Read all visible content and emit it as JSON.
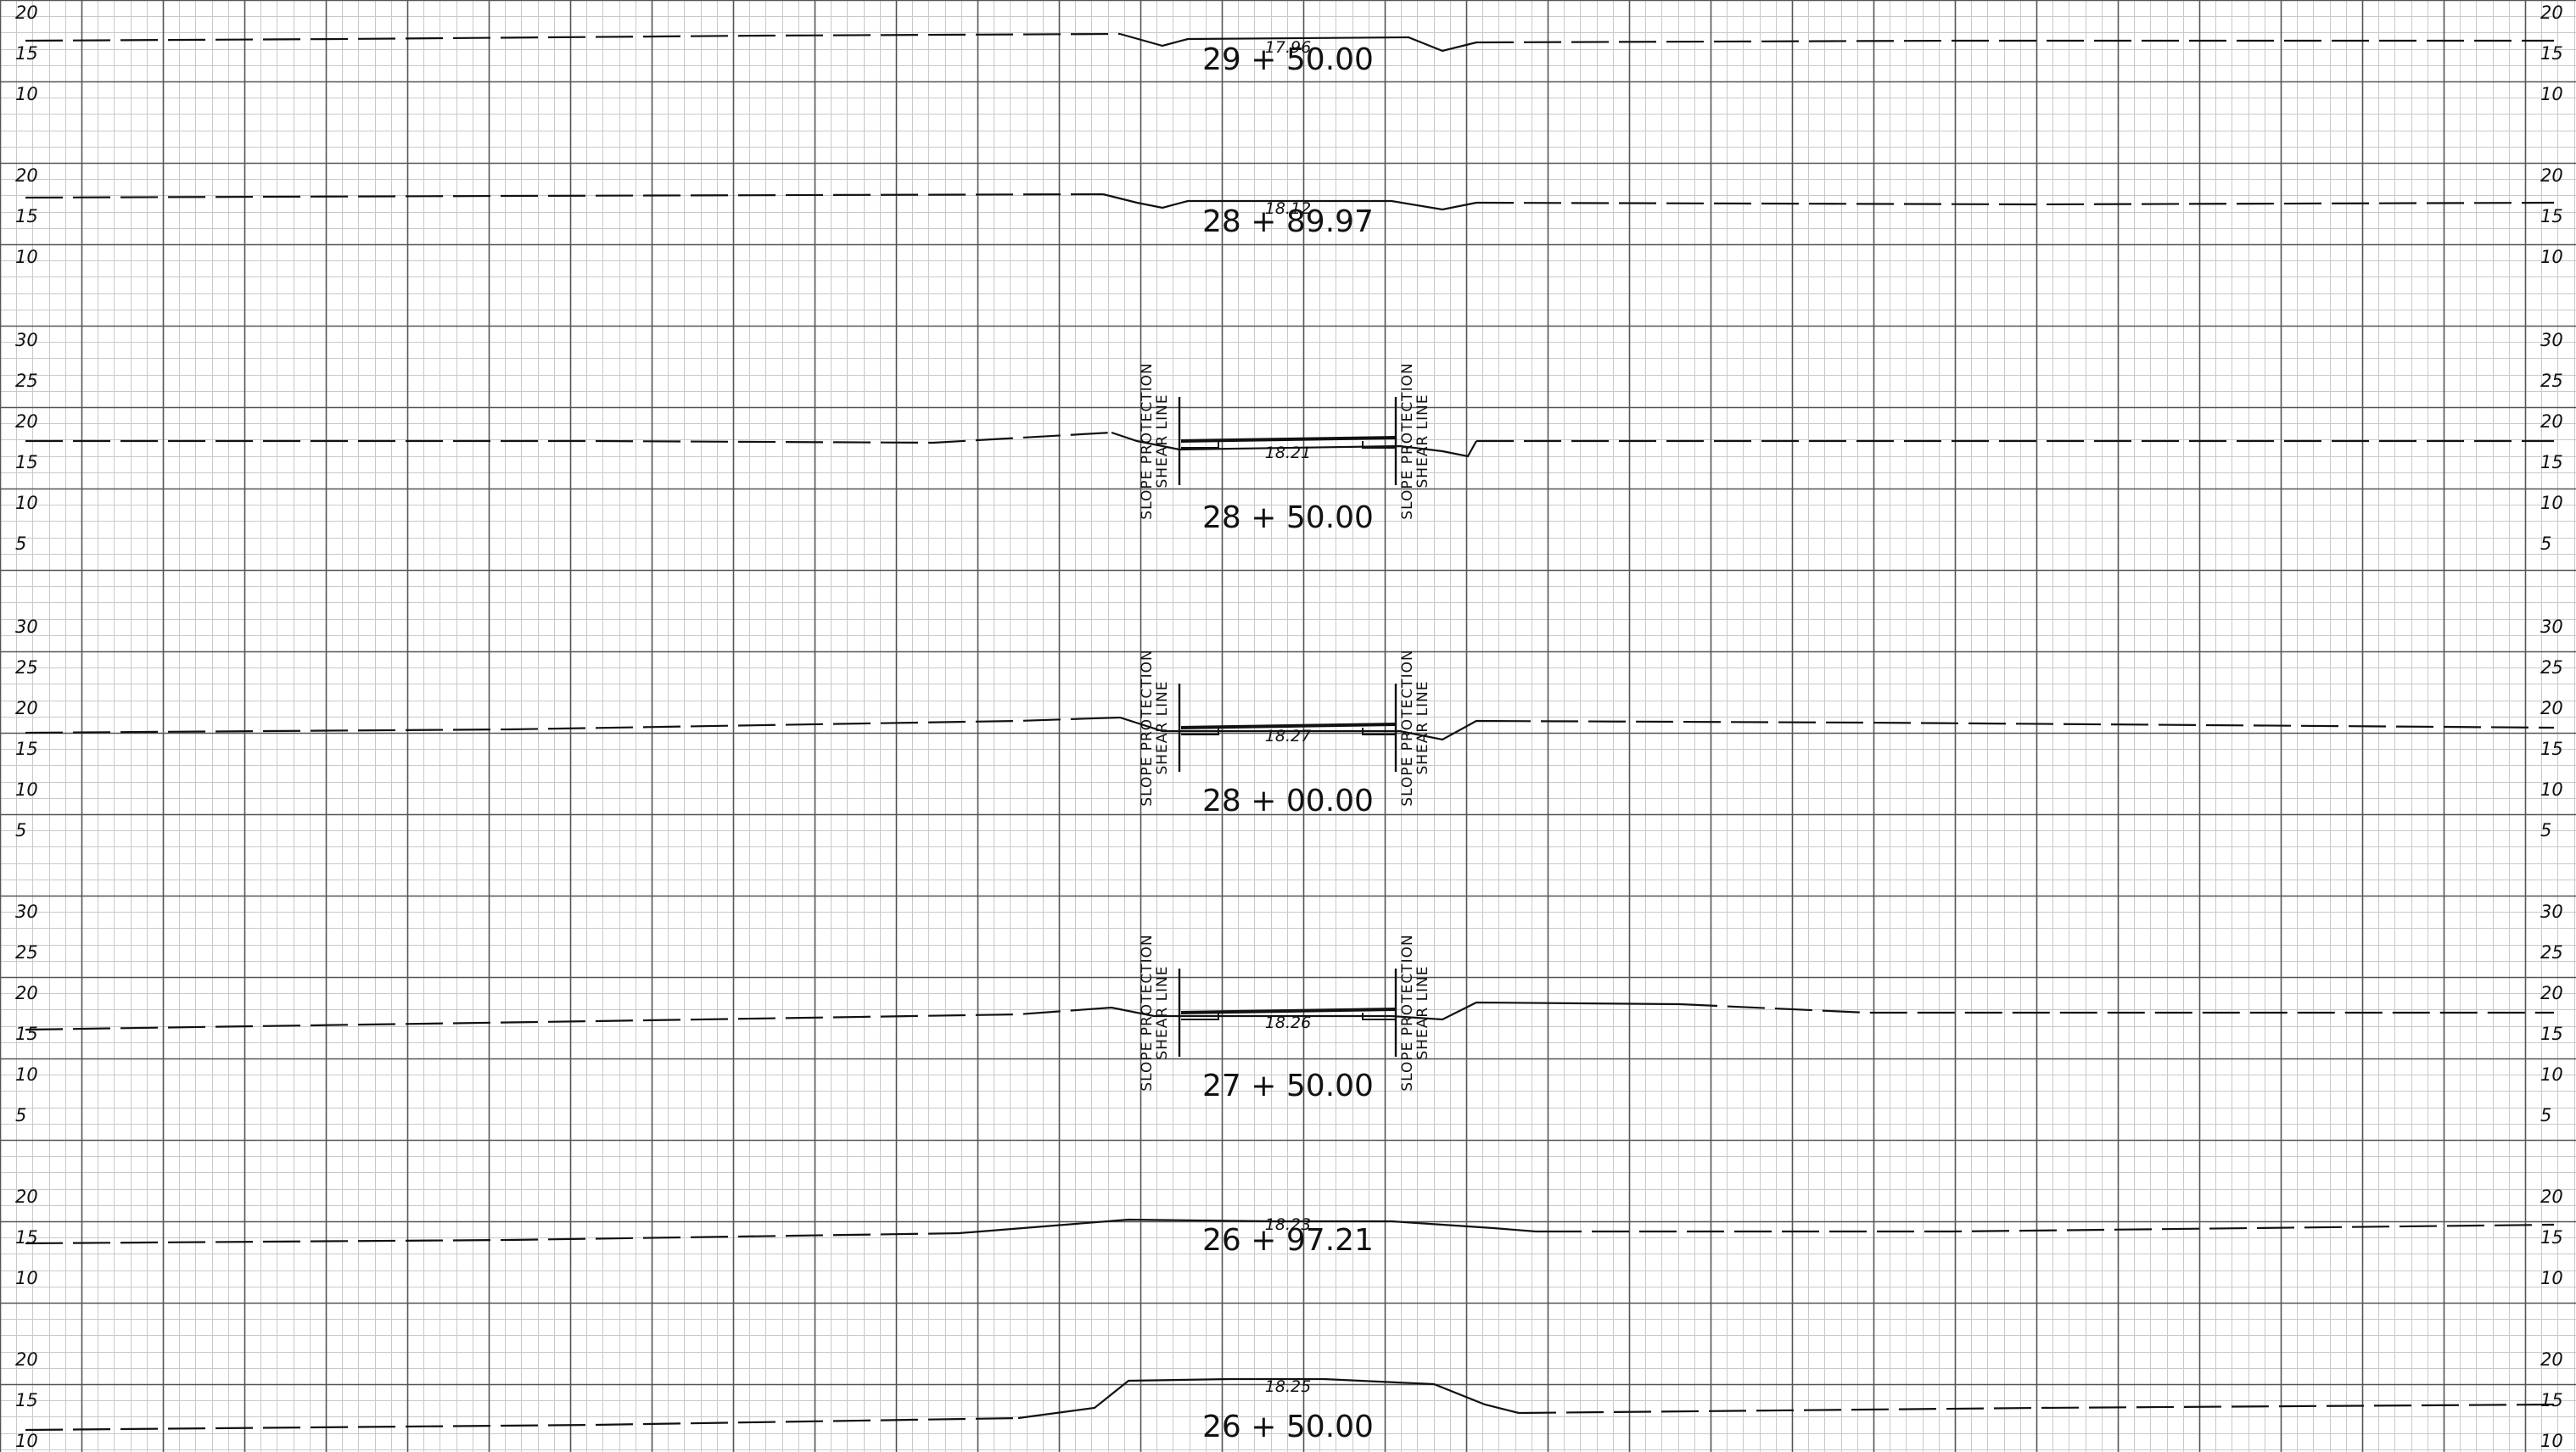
{
  "sheet": {
    "title": "",
    "grid": "on",
    "line_color": "#111111",
    "grid_minor_color": "#c9c9c9",
    "grid_major_color": "#555555"
  },
  "sections": [
    {
      "id": "s2950",
      "station": "29 + 50.00",
      "grade": "17.96",
      "labels_left": [
        "20",
        "15",
        "10"
      ],
      "labels_right": [
        "20",
        "15",
        "10"
      ],
      "slope_protection": false
    },
    {
      "id": "s2897",
      "station": "28 + 89.97",
      "grade": "18.12",
      "labels_left": [
        "20",
        "15",
        "10"
      ],
      "labels_right": [
        "20",
        "15",
        "10"
      ],
      "slope_protection": false
    },
    {
      "id": "s2850",
      "station": "28 + 50.00",
      "grade": "18.21",
      "labels_left": [
        "30",
        "25",
        "20",
        "15",
        "10",
        "5"
      ],
      "labels_right": [
        "30",
        "25",
        "20",
        "15",
        "10",
        "5"
      ],
      "slope_protection": true
    },
    {
      "id": "s2800",
      "station": "28 + 00.00",
      "grade": "18.27",
      "labels_left": [
        "30",
        "25",
        "20",
        "15",
        "10",
        "5"
      ],
      "labels_right": [
        "30",
        "25",
        "20",
        "15",
        "10",
        "5"
      ],
      "slope_protection": true
    },
    {
      "id": "s2750",
      "station": "27 + 50.00",
      "grade": "18.26",
      "labels_left": [
        "30",
        "25",
        "20",
        "15",
        "10",
        "5"
      ],
      "labels_right": [
        "30",
        "25",
        "20",
        "15",
        "10",
        "5"
      ],
      "slope_protection": true
    },
    {
      "id": "s2697",
      "station": "26 + 97.21",
      "grade": "18.23",
      "labels_left": [
        "20",
        "15",
        "10"
      ],
      "labels_right": [
        "20",
        "15",
        "10"
      ],
      "slope_protection": false
    },
    {
      "id": "s2650",
      "station": "26 + 50.00",
      "grade": "18.25",
      "labels_left": [
        "20",
        "15",
        "10"
      ],
      "labels_right": [
        "20",
        "15",
        "10"
      ],
      "slope_protection": false
    }
  ],
  "annotations": {
    "slope_line1": "SLOPE PROTECTION",
    "slope_line2": "SHEAR LINE"
  }
}
